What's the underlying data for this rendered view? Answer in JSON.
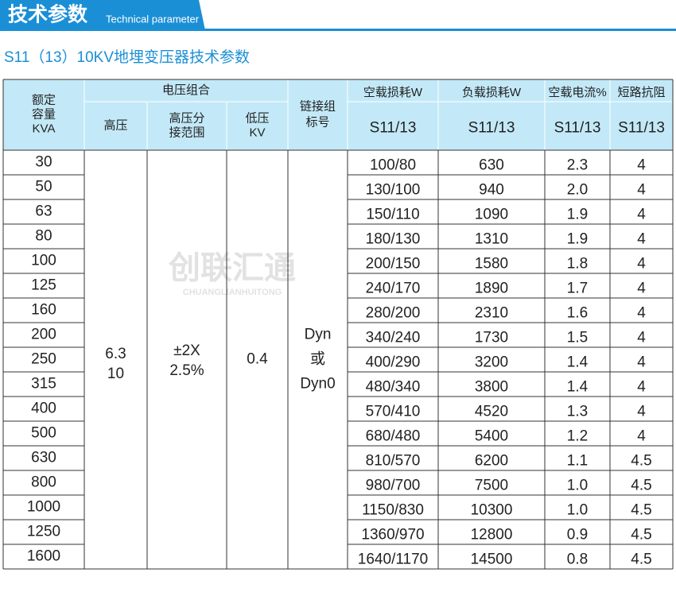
{
  "header": {
    "title": "技术参数",
    "subtitle": "Technical parameter"
  },
  "table_title": "S11（13）10KV地埋变压器技术参数",
  "watermark": {
    "name": "创联汇通",
    "pinyin": "CHUANGLIANHUITONG"
  },
  "table": {
    "head": {
      "capacity": [
        "额定",
        "容量",
        "KVA"
      ],
      "voltage_group": "电压组合",
      "high_voltage": "高压",
      "tap_range": [
        "高压分",
        "接范围"
      ],
      "low_voltage": [
        "低压",
        "KV"
      ],
      "connection": [
        "链接组",
        "标号"
      ],
      "no_load_loss": "空载损耗W",
      "load_loss": "负载损耗W",
      "no_load_current": "空载电流%",
      "impedance": "短路抗阻",
      "models": [
        "S11/13",
        "S11/13",
        "S11/13",
        "S11/13"
      ]
    },
    "merged": {
      "high_voltage": [
        "6.3",
        "10"
      ],
      "tap_range": [
        "±2X",
        "2.5%"
      ],
      "low_voltage": [
        "0.4"
      ],
      "connection": [
        "Dyn",
        "或",
        "Dyn0"
      ]
    },
    "rows": [
      [
        "30",
        "100/80",
        "630",
        "2.3",
        "4"
      ],
      [
        "50",
        "130/100",
        "940",
        "2.0",
        "4"
      ],
      [
        "63",
        "150/110",
        "1090",
        "1.9",
        "4"
      ],
      [
        "80",
        "180/130",
        "1310",
        "1.9",
        "4"
      ],
      [
        "100",
        "200/150",
        "1580",
        "1.8",
        "4"
      ],
      [
        "125",
        "240/170",
        "1890",
        "1.7",
        "4"
      ],
      [
        "160",
        "280/200",
        "2310",
        "1.6",
        "4"
      ],
      [
        "200",
        "340/240",
        "1730",
        "1.5",
        "4"
      ],
      [
        "250",
        "400/290",
        "3200",
        "1.4",
        "4"
      ],
      [
        "315",
        "480/340",
        "3800",
        "1.4",
        "4"
      ],
      [
        "400",
        "570/410",
        "4520",
        "1.3",
        "4"
      ],
      [
        "500",
        "680/480",
        "5400",
        "1.2",
        "4"
      ],
      [
        "630",
        "810/570",
        "6200",
        "1.1",
        "4.5"
      ],
      [
        "800",
        "980/700",
        "7500",
        "1.0",
        "4.5"
      ],
      [
        "1000",
        "1150/830",
        "10300",
        "1.0",
        "4.5"
      ],
      [
        "1250",
        "1360/970",
        "12800",
        "0.9",
        "4.5"
      ],
      [
        "1600",
        "1640/1170",
        "14500",
        "0.8",
        "4.5"
      ]
    ]
  }
}
